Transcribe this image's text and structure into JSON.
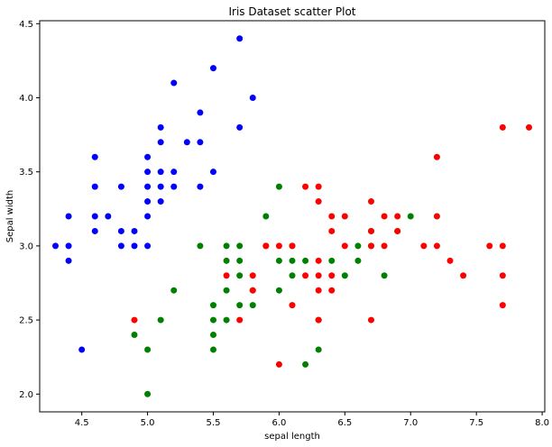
{
  "chart_data": {
    "type": "scatter",
    "title": "Iris Dataset scatter Plot",
    "xlabel": "sepal length",
    "ylabel": "Sepal width",
    "xlim": [
      4.18,
      8.02
    ],
    "ylim": [
      1.88,
      4.52
    ],
    "x_ticks": [
      "4.5",
      "5.0",
      "5.5",
      "6.0",
      "6.5",
      "7.0",
      "7.5",
      "8.0"
    ],
    "y_ticks": [
      "2.0",
      "2.5",
      "3.0",
      "3.5",
      "4.0",
      "4.5"
    ],
    "grid": false,
    "legend": "none",
    "series": [
      {
        "color": "#0000ff",
        "points": [
          [
            4.3,
            3.0
          ],
          [
            4.4,
            3.0
          ],
          [
            4.4,
            3.2
          ],
          [
            4.4,
            2.9
          ],
          [
            4.5,
            2.3
          ],
          [
            4.6,
            3.6
          ],
          [
            4.6,
            3.4
          ],
          [
            4.6,
            3.2
          ],
          [
            4.6,
            3.1
          ],
          [
            4.7,
            3.2
          ],
          [
            4.8,
            3.4
          ],
          [
            4.8,
            3.1
          ],
          [
            4.8,
            3.0
          ],
          [
            4.9,
            3.1
          ],
          [
            4.9,
            3.0
          ],
          [
            5.0,
            3.6
          ],
          [
            5.0,
            3.5
          ],
          [
            5.0,
            3.4
          ],
          [
            5.0,
            3.3
          ],
          [
            5.0,
            3.2
          ],
          [
            5.0,
            3.0
          ],
          [
            5.1,
            3.8
          ],
          [
            5.1,
            3.7
          ],
          [
            5.1,
            3.5
          ],
          [
            5.1,
            3.4
          ],
          [
            5.1,
            3.3
          ],
          [
            5.2,
            4.1
          ],
          [
            5.2,
            3.5
          ],
          [
            5.2,
            3.4
          ],
          [
            5.3,
            3.7
          ],
          [
            5.4,
            3.9
          ],
          [
            5.4,
            3.7
          ],
          [
            5.4,
            3.4
          ],
          [
            5.5,
            4.2
          ],
          [
            5.5,
            3.5
          ],
          [
            5.7,
            4.4
          ],
          [
            5.7,
            3.8
          ],
          [
            5.8,
            4.0
          ]
        ]
      },
      {
        "color": "#008000",
        "points": [
          [
            4.9,
            2.4
          ],
          [
            5.0,
            2.3
          ],
          [
            5.0,
            2.0
          ],
          [
            5.1,
            2.5
          ],
          [
            5.2,
            2.7
          ],
          [
            5.4,
            3.0
          ],
          [
            5.5,
            2.6
          ],
          [
            5.5,
            2.5
          ],
          [
            5.5,
            2.4
          ],
          [
            5.5,
            2.3
          ],
          [
            5.6,
            3.0
          ],
          [
            5.6,
            2.9
          ],
          [
            5.6,
            2.7
          ],
          [
            5.6,
            2.5
          ],
          [
            5.7,
            3.0
          ],
          [
            5.7,
            2.9
          ],
          [
            5.7,
            2.8
          ],
          [
            5.7,
            2.6
          ],
          [
            5.8,
            2.7
          ],
          [
            5.8,
            2.6
          ],
          [
            5.9,
            3.2
          ],
          [
            5.9,
            3.0
          ],
          [
            6.0,
            3.4
          ],
          [
            6.0,
            2.9
          ],
          [
            6.0,
            2.7
          ],
          [
            6.1,
            3.0
          ],
          [
            6.1,
            2.9
          ],
          [
            6.1,
            2.8
          ],
          [
            6.2,
            2.9
          ],
          [
            6.2,
            2.2
          ],
          [
            6.3,
            2.5
          ],
          [
            6.3,
            2.3
          ],
          [
            6.4,
            2.9
          ],
          [
            6.5,
            2.8
          ],
          [
            6.6,
            3.0
          ],
          [
            6.6,
            2.9
          ],
          [
            6.7,
            3.1
          ],
          [
            6.7,
            3.0
          ],
          [
            6.8,
            2.8
          ],
          [
            6.9,
            3.1
          ],
          [
            7.0,
            3.2
          ]
        ]
      },
      {
        "color": "#ff0000",
        "points": [
          [
            4.9,
            2.5
          ],
          [
            5.6,
            2.8
          ],
          [
            5.7,
            2.5
          ],
          [
            5.8,
            2.8
          ],
          [
            5.8,
            2.7
          ],
          [
            5.9,
            3.0
          ],
          [
            6.0,
            3.0
          ],
          [
            6.0,
            2.2
          ],
          [
            6.1,
            3.0
          ],
          [
            6.1,
            2.6
          ],
          [
            6.2,
            3.4
          ],
          [
            6.2,
            2.8
          ],
          [
            6.3,
            3.4
          ],
          [
            6.3,
            3.3
          ],
          [
            6.3,
            2.9
          ],
          [
            6.3,
            2.8
          ],
          [
            6.3,
            2.7
          ],
          [
            6.3,
            2.5
          ],
          [
            6.4,
            3.2
          ],
          [
            6.4,
            3.1
          ],
          [
            6.4,
            2.8
          ],
          [
            6.4,
            2.7
          ],
          [
            6.5,
            3.2
          ],
          [
            6.5,
            3.0
          ],
          [
            6.7,
            3.3
          ],
          [
            6.7,
            3.1
          ],
          [
            6.7,
            3.0
          ],
          [
            6.7,
            2.5
          ],
          [
            6.8,
            3.2
          ],
          [
            6.8,
            3.0
          ],
          [
            6.9,
            3.2
          ],
          [
            6.9,
            3.1
          ],
          [
            7.1,
            3.0
          ],
          [
            7.2,
            3.6
          ],
          [
            7.2,
            3.2
          ],
          [
            7.2,
            3.0
          ],
          [
            7.3,
            2.9
          ],
          [
            7.4,
            2.8
          ],
          [
            7.6,
            3.0
          ],
          [
            7.7,
            3.8
          ],
          [
            7.7,
            3.0
          ],
          [
            7.7,
            2.8
          ],
          [
            7.7,
            2.6
          ],
          [
            7.9,
            3.8
          ]
        ]
      }
    ]
  }
}
